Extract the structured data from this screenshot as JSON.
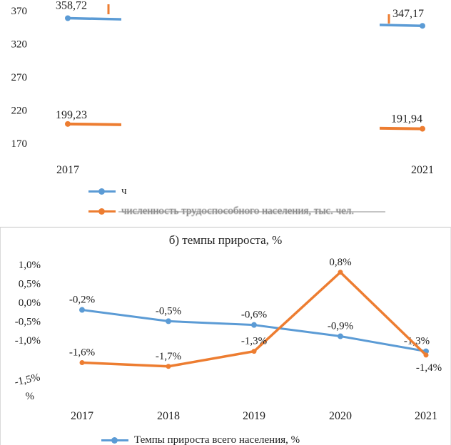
{
  "colors": {
    "blue": "#5B9BD5",
    "orange": "#ED7D31",
    "ink": "#1f1f1f"
  },
  "chart_data": [
    {
      "panel": "a",
      "type": "line",
      "title": "",
      "categories": [
        "2017",
        "2021"
      ],
      "y_ticks": [
        "370",
        "320",
        "270",
        "220",
        "170"
      ],
      "y_tick_values": [
        370,
        320,
        270,
        220,
        170
      ],
      "ylim": [
        170,
        370
      ],
      "grid": false,
      "legend_position": "bottom",
      "series": [
        {
          "name": "ч",
          "color_key": "blue",
          "values": [
            358.72,
            347.17
          ],
          "point_labels": [
            "358,72",
            "347,17"
          ]
        },
        {
          "name": "численность трудоспособного населения, тыс. чел.",
          "color_key": "orange",
          "values": [
            199.23,
            191.94
          ],
          "point_labels": [
            "199,23",
            "191,94"
          ]
        }
      ]
    },
    {
      "panel": "b",
      "type": "line",
      "title": "б) темпы прироста, %",
      "categories": [
        "2017",
        "2018",
        "2019",
        "2020",
        "2021"
      ],
      "y_ticks": [
        "1,0%",
        "0,5%",
        "0,0%",
        "-0,5%",
        "-1,0%",
        "-1,5%",
        "%"
      ],
      "y_tick_values": [
        1.0,
        0.5,
        0.0,
        -0.5,
        -1.0,
        -1.5,
        -2.0
      ],
      "ylim": [
        -2.0,
        1.0
      ],
      "grid": false,
      "legend_position": "bottom",
      "series": [
        {
          "name": "Темпы прироста всего населения, %",
          "color_key": "blue",
          "values": [
            -0.2,
            -0.5,
            -0.6,
            -0.9,
            -1.3
          ],
          "point_labels": [
            "-0,2%",
            "-0,5%",
            "-0,6%",
            "-0,9%",
            "-1,3%"
          ]
        },
        {
          "name": "",
          "color_key": "orange",
          "values": [
            -1.6,
            -1.7,
            -1.3,
            0.8,
            -1.4
          ],
          "point_labels": [
            "-1,6%",
            "-1,7%",
            "-1,3%",
            "0,8%",
            "-1,4%"
          ]
        }
      ]
    }
  ]
}
